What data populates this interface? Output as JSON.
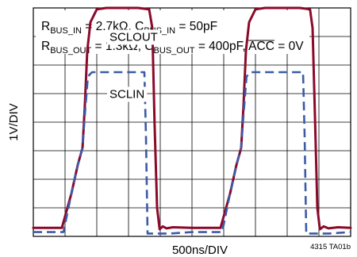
{
  "chart_data": {
    "type": "line",
    "xlabel": "500ns/DIV",
    "ylabel": "1V/DIV",
    "xlim": [
      0,
      10
    ],
    "ylim": [
      0,
      8
    ],
    "x_divisions": 10,
    "y_divisions": 8,
    "grid": true,
    "conditions": {
      "line1": {
        "r_main": "R",
        "r_sub": "BUS_IN",
        "r_val": " = 2.7kΩ, ",
        "c_main": "C",
        "c_sub": "BUS_IN",
        "c_val": " = 50pF"
      },
      "line2": {
        "r_main": "R",
        "r_sub": "BUS_OUT",
        "r_val": " = 1.3kΩ, ",
        "c_main": "C",
        "c_sub": "BUS_OUT",
        "c_val": " = 400pF, ",
        "acc": "ACC",
        "acc_val": " = 0V"
      }
    },
    "series": [
      {
        "name": "SCLOUT",
        "color": "#8b0a2a",
        "style": "solid",
        "x": [
          0.0,
          0.9,
          1.2,
          1.4,
          1.55,
          1.62,
          1.7,
          1.8,
          2.0,
          2.3,
          3.3,
          3.65,
          3.75,
          3.82,
          3.9,
          3.98,
          4.08,
          4.2,
          4.4,
          5.0,
          5.9,
          6.2,
          6.4,
          6.55,
          6.62,
          6.7,
          6.8,
          7.0,
          7.3,
          8.4,
          8.72,
          8.8,
          8.88,
          8.95,
          9.03,
          9.15,
          9.3,
          9.6,
          10.0
        ],
        "y": [
          0.3,
          0.3,
          1.5,
          2.5,
          3.1,
          4.5,
          6.5,
          7.5,
          7.95,
          8.0,
          8.0,
          7.95,
          7.3,
          4.0,
          1.0,
          0.25,
          0.35,
          0.28,
          0.32,
          0.3,
          0.3,
          1.5,
          2.5,
          3.1,
          4.5,
          6.5,
          7.5,
          7.95,
          8.0,
          8.0,
          7.95,
          7.3,
          4.0,
          1.0,
          0.25,
          0.35,
          0.28,
          0.32,
          0.3
        ]
      },
      {
        "name": "SCLIN",
        "color": "#3b5ba8",
        "style": "dashed",
        "x": [
          0.0,
          0.95,
          1.2,
          1.4,
          1.55,
          1.62,
          1.72,
          1.85,
          2.2,
          3.5,
          3.55,
          3.6,
          3.7,
          4.3,
          5.0,
          5.95,
          6.2,
          6.4,
          6.55,
          6.62,
          6.72,
          6.85,
          7.2,
          8.5,
          8.55,
          8.6,
          8.7,
          9.3,
          10.0
        ],
        "y": [
          0.15,
          0.15,
          1.5,
          2.5,
          3.1,
          4.2,
          5.6,
          5.75,
          5.75,
          5.75,
          3.5,
          0.1,
          0.1,
          0.1,
          0.15,
          0.15,
          1.5,
          2.5,
          3.1,
          4.2,
          5.6,
          5.75,
          5.75,
          5.75,
          3.5,
          0.1,
          0.1,
          0.1,
          0.15
        ]
      }
    ],
    "annotations": [
      {
        "text": "SCLOUT",
        "x": 2.4,
        "y": 6.85,
        "series": "SCLOUT"
      },
      {
        "text": "SCLIN",
        "x": 2.4,
        "y": 4.85,
        "series": "SCLIN"
      }
    ],
    "figure_tag": "4315 TA01b"
  }
}
